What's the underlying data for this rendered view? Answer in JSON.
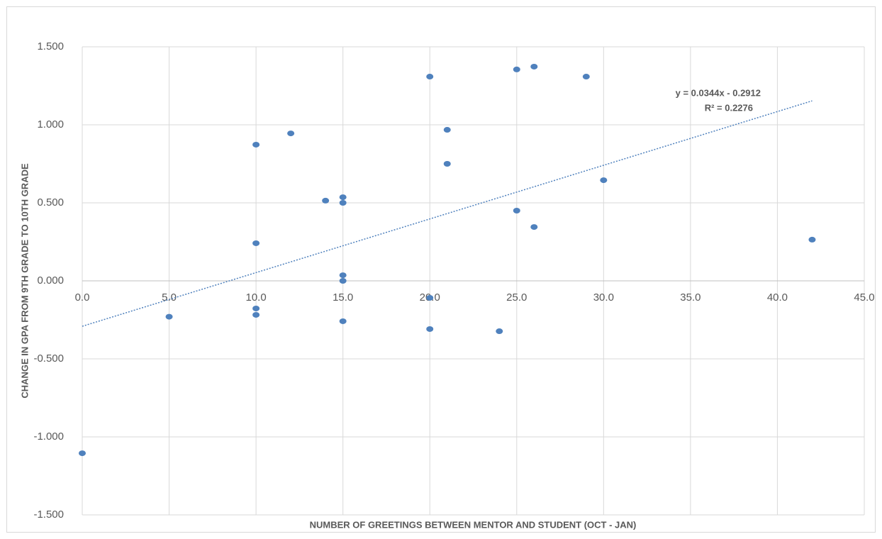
{
  "chart_data": {
    "type": "scatter",
    "xlabel": "NUMBER OF GREETINGS BETWEEN MENTOR AND STUDENT (OCT - JAN)",
    "ylabel": "CHANGE IN GPA FROM 9TH GRADE TO 10TH GRADE",
    "xlim": [
      0,
      45
    ],
    "ylim": [
      -1.5,
      1.5
    ],
    "xticks": [
      {
        "value": 0,
        "label": "0.0"
      },
      {
        "value": 5,
        "label": "5.0"
      },
      {
        "value": 10,
        "label": "10.0"
      },
      {
        "value": 15,
        "label": "15.0"
      },
      {
        "value": 20,
        "label": "20.0"
      },
      {
        "value": 25,
        "label": "25.0"
      },
      {
        "value": 30,
        "label": "30.0"
      },
      {
        "value": 35,
        "label": "35.0"
      },
      {
        "value": 40,
        "label": "40.0"
      },
      {
        "value": 45,
        "label": "45.0"
      }
    ],
    "yticks": [
      {
        "value": -1.5,
        "label": "-1.500"
      },
      {
        "value": -1,
        "label": "-1.000"
      },
      {
        "value": -0.5,
        "label": "-0.500"
      },
      {
        "value": 0,
        "label": "0.000"
      },
      {
        "value": 0.5,
        "label": "0.500"
      },
      {
        "value": 1,
        "label": "1.000"
      },
      {
        "value": 1.5,
        "label": "1.500"
      }
    ],
    "grid": true,
    "series": [
      {
        "color": "#4f81bd",
        "x": [
          0,
          5,
          10,
          10,
          10,
          10,
          12,
          14,
          15,
          15,
          15,
          15,
          15,
          20,
          20,
          20,
          21,
          21,
          24,
          25,
          25,
          26,
          26,
          29,
          30,
          42
        ],
        "values": [
          -1.105,
          -0.23,
          0.873,
          0.241,
          -0.177,
          -0.218,
          0.945,
          0.514,
          0.536,
          0.5,
          0.036,
          0,
          -0.259,
          1.309,
          -0.109,
          -0.309,
          0.968,
          0.75,
          -0.323,
          1.355,
          0.45,
          1.373,
          0.345,
          1.309,
          0.645,
          0.264
        ]
      }
    ],
    "trendline": {
      "slope": 0.0344,
      "intercept": -0.2912,
      "xrange": [
        0,
        42
      ],
      "color": "#4f81bd",
      "equation": "y = 0.0344x - 0.2912",
      "r_squared": "R² = 0.2276"
    }
  }
}
